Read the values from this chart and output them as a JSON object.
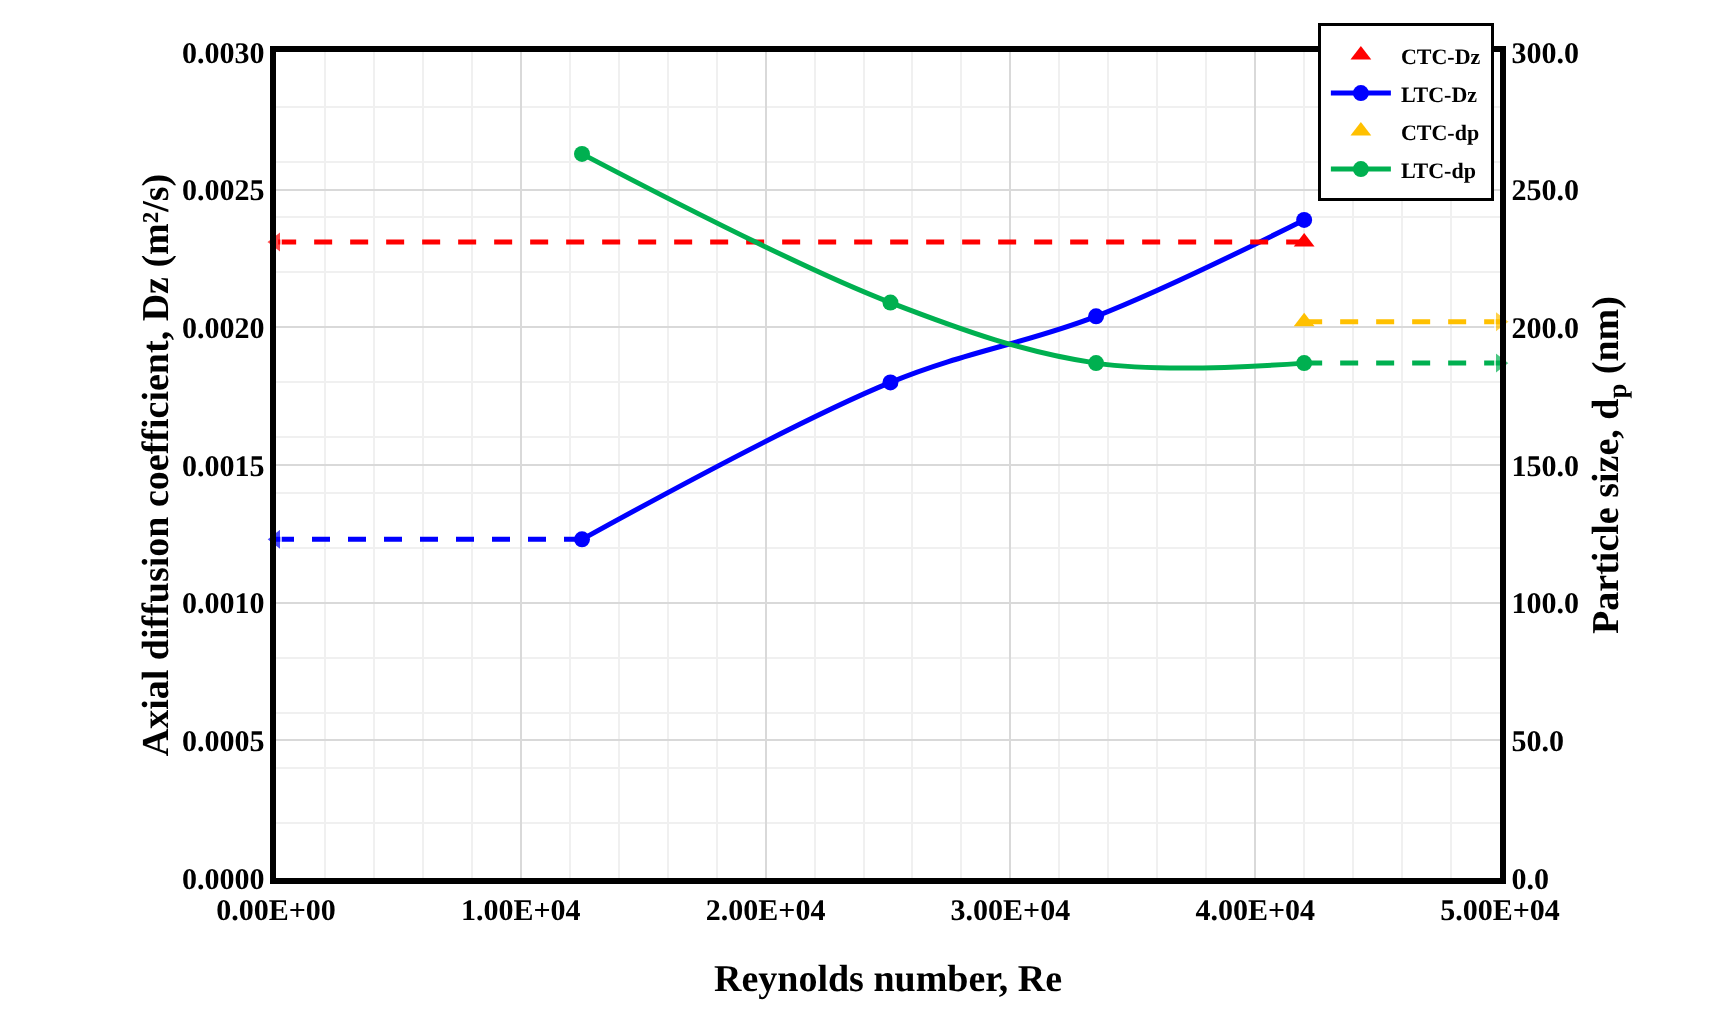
{
  "chart_data": {
    "type": "line",
    "xlabel": "Reynolds number, Re",
    "ylabel": "Axial diffusion coefficient, Dz (m²/s)",
    "y2label": "Particle size, d$_{p}$ (nm)",
    "xlim": [
      0,
      50000
    ],
    "xticks": [
      {
        "value": 0,
        "label": "0.00E+00"
      },
      {
        "value": 10000,
        "label": "1.00E+04"
      },
      {
        "value": 20000,
        "label": "2.00E+04"
      },
      {
        "value": 30000,
        "label": "3.00E+04"
      },
      {
        "value": 40000,
        "label": "4.00E+04"
      },
      {
        "value": 50000,
        "label": "5.00E+04"
      }
    ],
    "ylim": [
      0,
      0.003
    ],
    "yticks": [
      {
        "value": 0,
        "label": "0.0000"
      },
      {
        "value": 0.0005,
        "label": "0.0005"
      },
      {
        "value": 0.001,
        "label": "0.0010"
      },
      {
        "value": 0.0015,
        "label": "0.0015"
      },
      {
        "value": 0.002,
        "label": "0.0020"
      },
      {
        "value": 0.0025,
        "label": "0.0025"
      },
      {
        "value": 0.003,
        "label": "0.0030"
      }
    ],
    "y2lim": [
      0,
      300
    ],
    "y2ticks": [
      {
        "value": 0,
        "label": "0.0"
      },
      {
        "value": 50,
        "label": "50.0"
      },
      {
        "value": 100,
        "label": "100.0"
      },
      {
        "value": 150,
        "label": "150.0"
      },
      {
        "value": 200,
        "label": "200.0"
      },
      {
        "value": 250,
        "label": "250.0"
      },
      {
        "value": 300,
        "label": "300.0"
      }
    ],
    "grid": true,
    "legend": "top right",
    "series": [
      {
        "name": "CTC-Dz",
        "type": "scatter",
        "marker": "triangle",
        "color": "#ff0000",
        "x": [
          42000
        ],
        "values": [
          0.00231
        ]
      },
      {
        "name": "LTC-Dz",
        "marker": "circle",
        "line_style": "solid",
        "color": "#0000ff",
        "x": [
          12500,
          25100,
          33500,
          42000
        ],
        "values": [
          0.00123,
          0.0018,
          0.00204,
          0.00239
        ]
      },
      {
        "name": "CTC-dp",
        "type": "scatter",
        "marker": "triangle",
        "color": "#ffc000",
        "axis": "y2",
        "x": [
          42000
        ],
        "values": [
          202
        ]
      },
      {
        "name": "LTC-dp",
        "marker": "circle",
        "line_style": "solid",
        "color": "#00b050",
        "axis": "y2",
        "x": [
          12500,
          25100,
          33500,
          42000
        ],
        "values": [
          263,
          209,
          187,
          187
        ]
      },
      {
        "marker": "triangle",
        "line_style": "dashed",
        "color": "#ff0000",
        "x": [
          42000,
          0
        ],
        "values": [
          0.00231,
          0.00231
        ]
      },
      {
        "marker": "triangle",
        "line_style": "dashed",
        "color": "#0000ff",
        "x": [
          12500,
          0
        ],
        "values": [
          0.00123,
          0.00123
        ]
      },
      {
        "marker": "triangle",
        "line_style": "dashed",
        "color": "#ffc000",
        "axis": "y2",
        "x": [
          42000,
          50000
        ],
        "values": [
          202,
          202
        ]
      },
      {
        "marker": "triangle",
        "line_style": "dashed",
        "color": "#00b050",
        "axis": "y2",
        "x": [
          42000,
          50000
        ],
        "values": [
          187,
          187
        ]
      }
    ]
  }
}
